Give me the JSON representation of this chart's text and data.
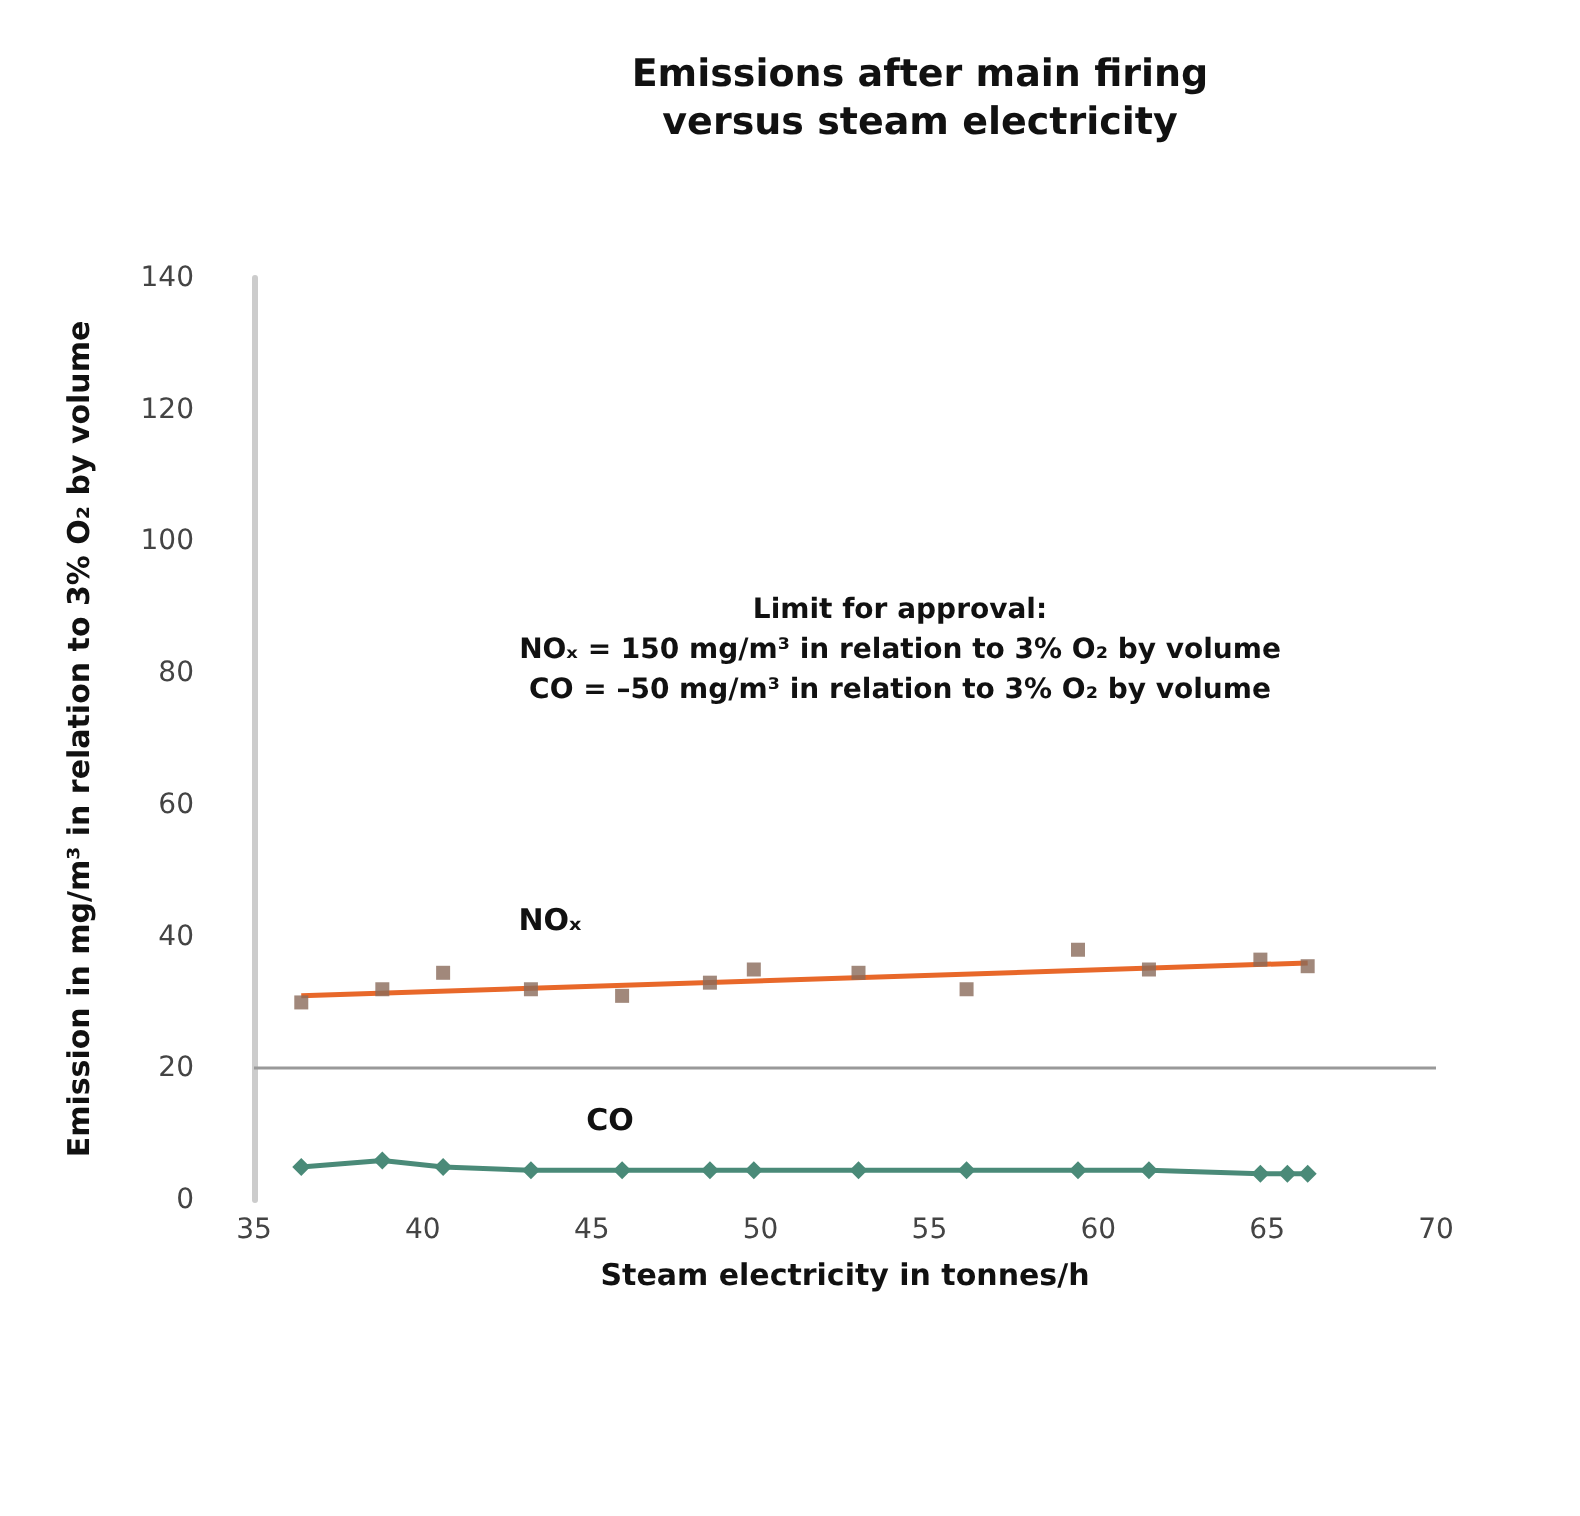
{
  "chart_data": {
    "type": "scatter",
    "title": "Emissions after main firing\nversus steam electricity",
    "xlabel": "Steam electricity in tonnes/h",
    "ylabel": "Emission in mg/m³ in relation to 3% O₂ by volume",
    "xlim": [
      35,
      70
    ],
    "xticks": [
      35,
      40,
      45,
      50,
      55,
      60,
      65,
      70
    ],
    "ylim": [
      0,
      140
    ],
    "yticks": [
      0,
      20,
      40,
      60,
      80,
      100,
      120,
      140
    ],
    "grid": false,
    "series": [
      {
        "marker": "square",
        "color": "#8a6a5a",
        "x": [
          36.4,
          38.8,
          40.6,
          43.2,
          45.9,
          48.5,
          49.8,
          52.9,
          56.1,
          59.4,
          61.5,
          64.8,
          66.2
        ],
        "values": [
          30,
          32,
          34.5,
          32,
          31,
          33,
          35,
          34.5,
          32,
          38,
          35,
          36.5,
          35.5
        ]
      },
      {
        "type": "line",
        "marker": "none",
        "line_style": "solid",
        "color": "#e8682a",
        "x": [
          36.4,
          66.2
        ],
        "values": [
          31,
          36
        ]
      },
      {
        "type": "line",
        "marker": "diamond",
        "line_style": "solid",
        "color": "#4a8a78",
        "x": [
          36.4,
          38.8,
          40.6,
          43.2,
          45.9,
          48.5,
          49.8,
          52.9,
          56.1,
          59.4,
          61.5,
          64.8,
          65.6,
          66.2
        ],
        "values": [
          5,
          6,
          5,
          4.5,
          4.5,
          4.5,
          4.5,
          4.5,
          4.5,
          4.5,
          4.5,
          4,
          4,
          4
        ]
      }
    ],
    "ref_lines": [
      {
        "axis": "y",
        "value": 20,
        "color": "#999999"
      }
    ],
    "annotations": [
      "Limit for approval:\nNOₓ = 150 mg/m³ in relation to 3% O₂ by volume\nCO = –50 mg/m³ in relation to 3% O₂ by volume",
      "NOₓ",
      "CO"
    ]
  }
}
